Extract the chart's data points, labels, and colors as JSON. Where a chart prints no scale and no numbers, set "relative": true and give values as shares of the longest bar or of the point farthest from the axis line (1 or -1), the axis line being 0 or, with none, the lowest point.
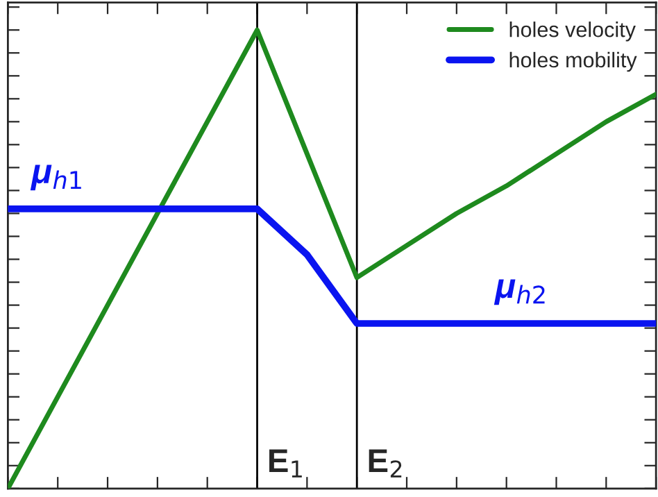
{
  "chart_data": {
    "type": "line",
    "relative": true,
    "tick_labels": false,
    "legend": "top right",
    "grid": false,
    "categories": [
      null,
      null,
      null,
      null,
      null,
      null,
      null,
      null,
      null,
      null,
      null,
      null,
      null,
      null
    ],
    "series": [
      {
        "name": "holes velocity",
        "color": "#1e8a1e",
        "values": [
          0,
          0.2,
          0.4,
          0.6,
          0.8,
          1,
          0.73,
          0.46,
          0.53,
          0.6,
          0.66,
          0.73,
          0.8,
          0.86
        ]
      },
      {
        "name": "holes mobility",
        "color": "#0a14f0",
        "values": [
          0.61,
          0.61,
          0.61,
          0.61,
          0.61,
          0.61,
          0.51,
          0.36,
          0.36,
          0.36,
          0.36,
          0.36,
          0.36,
          0.36
        ]
      }
    ],
    "annotations": [
      "μ$_{h1}$",
      "μ$_{h2}$",
      "E$_{1}$",
      "E$_{2}$"
    ]
  }
}
